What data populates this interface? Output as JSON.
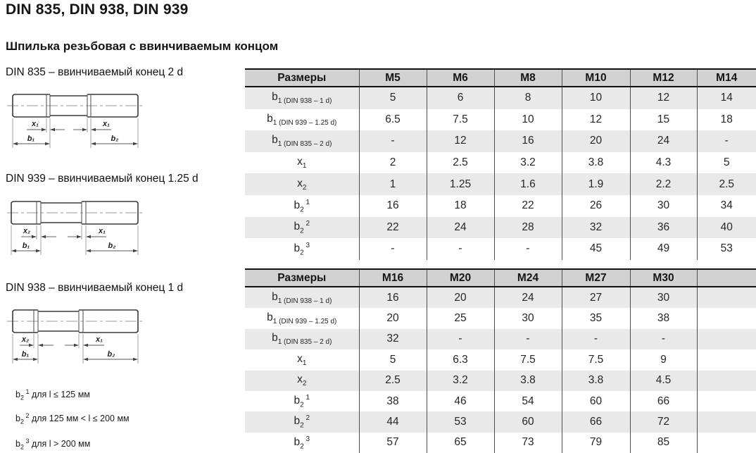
{
  "page": {
    "title": "DIN 835, DIN 938, DIN 939",
    "subtitle": "Шпилька резьбовая с ввинчиваемым концом"
  },
  "drawings": [
    {
      "caption": "DIN 835 – ввинчиваемый конец 2 d",
      "labels": {
        "x_left": "x₁",
        "x_right": "x₁",
        "b_left": "b₁",
        "b_right": "b₂"
      }
    },
    {
      "caption": "DIN 939 – ввинчиваемый конец 1.25 d",
      "labels": {
        "x_left": "x₂",
        "x_right": "x₁",
        "b_left": "b₁",
        "b_right": "b₂"
      }
    },
    {
      "caption": "DIN 938 – ввинчиваемый конец 1 d",
      "labels": {
        "x_left": "x₂",
        "x_right": "x₁",
        "b_left": "b₁",
        "b_right": "b₂"
      }
    }
  ],
  "tables": [
    {
      "header": [
        "Размеры",
        "M5",
        "M6",
        "M8",
        "M10",
        "M12",
        "M14"
      ],
      "rows": [
        {
          "label": [
            [
              "n",
              "b"
            ],
            [
              "sub",
              "1 (DIN 938 – 1 d)"
            ]
          ],
          "values": [
            "5",
            "6",
            "8",
            "10",
            "12",
            "14"
          ]
        },
        {
          "label": [
            [
              "n",
              "b"
            ],
            [
              "sub",
              "1 (DIN 939 – 1.25 d)"
            ]
          ],
          "values": [
            "6.5",
            "7.5",
            "10",
            "12",
            "15",
            "18"
          ]
        },
        {
          "label": [
            [
              "n",
              "b"
            ],
            [
              "sub",
              "1 (DIN 835 – 2 d)"
            ]
          ],
          "values": [
            "-",
            "12",
            "16",
            "20",
            "24",
            "-"
          ]
        },
        {
          "label": [
            [
              "n",
              "x"
            ],
            [
              "sub",
              "1"
            ]
          ],
          "values": [
            "2",
            "2.5",
            "3.2",
            "3.8",
            "4.3",
            "5"
          ]
        },
        {
          "label": [
            [
              "n",
              "x"
            ],
            [
              "sub",
              "2"
            ]
          ],
          "values": [
            "1",
            "1.25",
            "1.6",
            "1.9",
            "2.2",
            "2.5"
          ]
        },
        {
          "label": [
            [
              "n",
              "b"
            ],
            [
              "sub",
              "2"
            ],
            [
              "sup",
              " 1"
            ]
          ],
          "values": [
            "16",
            "18",
            "22",
            "26",
            "30",
            "34"
          ]
        },
        {
          "label": [
            [
              "n",
              "b"
            ],
            [
              "sub",
              "2"
            ],
            [
              "sup",
              " 2"
            ]
          ],
          "values": [
            "22",
            "24",
            "28",
            "32",
            "36",
            "40"
          ]
        },
        {
          "label": [
            [
              "n",
              "b"
            ],
            [
              "sub",
              "2"
            ],
            [
              "sup",
              " 3"
            ]
          ],
          "values": [
            "-",
            "-",
            "-",
            "45",
            "49",
            "53"
          ]
        }
      ]
    },
    {
      "header": [
        "Размеры",
        "M16",
        "M20",
        "M24",
        "M27",
        "M30",
        ""
      ],
      "rows": [
        {
          "label": [
            [
              "n",
              "b"
            ],
            [
              "sub",
              "1 (DIN 938 – 1 d)"
            ]
          ],
          "values": [
            "16",
            "20",
            "24",
            "27",
            "30",
            ""
          ]
        },
        {
          "label": [
            [
              "n",
              "b"
            ],
            [
              "sub",
              "1 (DIN 939 – 1.25 d)"
            ]
          ],
          "values": [
            "20",
            "25",
            "30",
            "35",
            "38",
            ""
          ]
        },
        {
          "label": [
            [
              "n",
              "b"
            ],
            [
              "sub",
              "1 (DIN 835 – 2 d)"
            ]
          ],
          "values": [
            "32",
            "-",
            "-",
            "-",
            "-",
            ""
          ]
        },
        {
          "label": [
            [
              "n",
              "x"
            ],
            [
              "sub",
              "1"
            ]
          ],
          "values": [
            "5",
            "6.3",
            "7.5",
            "7.5",
            "9",
            ""
          ]
        },
        {
          "label": [
            [
              "n",
              "x"
            ],
            [
              "sub",
              "2"
            ]
          ],
          "values": [
            "2.5",
            "3.2",
            "3.8",
            "3.8",
            "4.5",
            ""
          ]
        },
        {
          "label": [
            [
              "n",
              "b"
            ],
            [
              "sub",
              "2"
            ],
            [
              "sup",
              " 1"
            ]
          ],
          "values": [
            "38",
            "46",
            "54",
            "60",
            "66",
            ""
          ]
        },
        {
          "label": [
            [
              "n",
              "b"
            ],
            [
              "sub",
              "2"
            ],
            [
              "sup",
              " 2"
            ]
          ],
          "values": [
            "44",
            "53",
            "60",
            "66",
            "72",
            ""
          ]
        },
        {
          "label": [
            [
              "n",
              "b"
            ],
            [
              "sub",
              "2"
            ],
            [
              "sup",
              " 3"
            ]
          ],
          "values": [
            "57",
            "65",
            "73",
            "79",
            "85",
            ""
          ]
        }
      ]
    }
  ],
  "footnotes": [
    [
      [
        "n",
        "b"
      ],
      [
        "sub",
        "2"
      ],
      [
        "sup",
        " 1"
      ],
      [
        "n",
        " для l ≤ 125 мм"
      ]
    ],
    [
      [
        "n",
        "b"
      ],
      [
        "sub",
        "2"
      ],
      [
        "sup",
        " 2"
      ],
      [
        "n",
        " для 125 мм < l ≤ 200 мм"
      ]
    ],
    [
      [
        "n",
        "b"
      ],
      [
        "sub",
        "2"
      ],
      [
        "sup",
        " 3"
      ],
      [
        "n",
        " для l > 200 мм"
      ]
    ]
  ],
  "colors": {
    "header_bg": "#d2d2d2",
    "stripe_bg": "#e9e9e9",
    "header_border": "#111111",
    "grid_line": "#4d4d4d",
    "text": "#1f1f1f"
  }
}
